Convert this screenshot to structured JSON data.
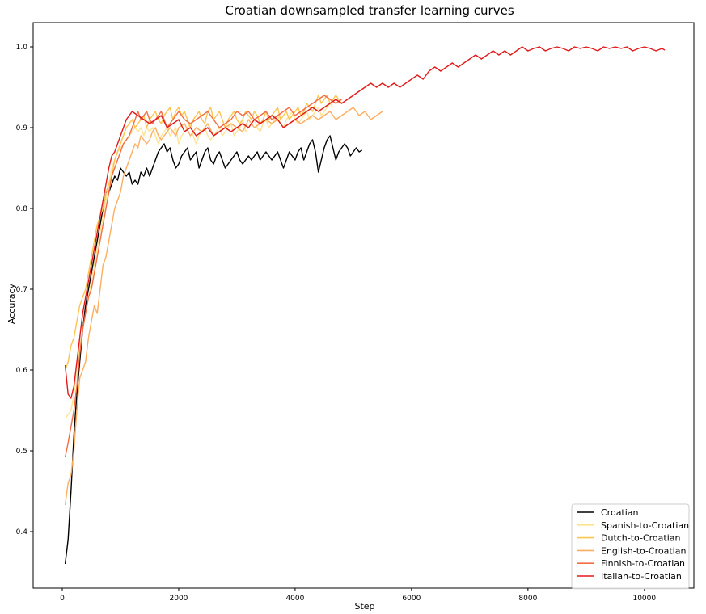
{
  "chart_data": {
    "type": "line",
    "title": "Croatian downsampled transfer learning curves",
    "xlabel": "Step",
    "ylabel": "Accuracy",
    "xlim": [
      -500,
      10850
    ],
    "ylim": [
      0.33,
      1.03
    ],
    "xticks": [
      0,
      2000,
      4000,
      6000,
      8000,
      10000
    ],
    "xtick_labels": [
      "0",
      "2000",
      "4000",
      "6000",
      "8000",
      "10000"
    ],
    "yticks": [
      0.4,
      0.5,
      0.6,
      0.7,
      0.8,
      0.9,
      1.0
    ],
    "ytick_labels": [
      "0.4",
      "0.5",
      "0.6",
      "0.7",
      "0.8",
      "0.9",
      "1.0"
    ],
    "grid": false,
    "legend_position": "lower-right",
    "series": [
      {
        "name": "Croatian",
        "color": "#000000",
        "x": [
          50,
          100,
          150,
          200,
          250,
          300,
          350,
          400,
          450,
          500,
          550,
          600,
          650,
          700,
          750,
          800,
          850,
          900,
          950,
          1000,
          1050,
          1100,
          1150,
          1200,
          1250,
          1300,
          1350,
          1400,
          1450,
          1500,
          1550,
          1600,
          1650,
          1700,
          1750,
          1800,
          1850,
          1900,
          1950,
          2000,
          2050,
          2100,
          2150,
          2200,
          2250,
          2300,
          2350,
          2400,
          2450,
          2500,
          2550,
          2600,
          2650,
          2700,
          2750,
          2800,
          2850,
          2900,
          2950,
          3000,
          3050,
          3100,
          3150,
          3200,
          3250,
          3300,
          3350,
          3400,
          3450,
          3500,
          3550,
          3600,
          3650,
          3700,
          3750,
          3800,
          3850,
          3900,
          3950,
          4000,
          4050,
          4100,
          4150,
          4200,
          4250,
          4300,
          4350,
          4400,
          4450,
          4500,
          4550,
          4600,
          4650,
          4700,
          4750,
          4800,
          4850,
          4900,
          4950,
          5000,
          5050,
          5100,
          5150
        ],
        "y": [
          0.36,
          0.39,
          0.45,
          0.52,
          0.57,
          0.61,
          0.65,
          0.68,
          0.7,
          0.72,
          0.74,
          0.76,
          0.78,
          0.8,
          0.82,
          0.82,
          0.83,
          0.84,
          0.835,
          0.85,
          0.845,
          0.84,
          0.845,
          0.83,
          0.835,
          0.83,
          0.845,
          0.84,
          0.85,
          0.84,
          0.85,
          0.86,
          0.87,
          0.875,
          0.88,
          0.87,
          0.875,
          0.86,
          0.85,
          0.855,
          0.865,
          0.87,
          0.875,
          0.86,
          0.865,
          0.87,
          0.85,
          0.86,
          0.87,
          0.875,
          0.86,
          0.855,
          0.865,
          0.87,
          0.86,
          0.85,
          0.855,
          0.86,
          0.865,
          0.87,
          0.86,
          0.855,
          0.86,
          0.865,
          0.86,
          0.865,
          0.87,
          0.86,
          0.865,
          0.87,
          0.865,
          0.86,
          0.865,
          0.87,
          0.86,
          0.85,
          0.86,
          0.87,
          0.865,
          0.86,
          0.87,
          0.875,
          0.86,
          0.87,
          0.88,
          0.885,
          0.87,
          0.845,
          0.86,
          0.875,
          0.885,
          0.89,
          0.875,
          0.86,
          0.87,
          0.875,
          0.88,
          0.875,
          0.865,
          0.87,
          0.875,
          0.87,
          0.872
        ]
      },
      {
        "name": "Spanish-to-Croatian",
        "color": "#fee391",
        "x": [
          50,
          100,
          150,
          200,
          250,
          300,
          350,
          400,
          450,
          500,
          550,
          600,
          650,
          700,
          750,
          800,
          850,
          900,
          950,
          1000,
          1050,
          1100,
          1150,
          1200,
          1250,
          1300,
          1350,
          1400,
          1450,
          1500,
          1550,
          1600,
          1650,
          1700,
          1750,
          1800,
          1850,
          1900,
          1950,
          2000,
          2050,
          2100,
          2150,
          2200,
          2250,
          2300,
          2350,
          2400,
          2450,
          2500,
          2550,
          2600,
          2650,
          2700,
          2750,
          2800,
          2850,
          2900,
          2950,
          3000,
          3050,
          3100,
          3150,
          3200,
          3250,
          3300,
          3350,
          3400,
          3450,
          3500,
          3550,
          3600,
          3650,
          3700,
          3750,
          3800,
          3850,
          3900,
          3950,
          4000,
          4050,
          4100,
          4150,
          4200,
          4250,
          4300,
          4350,
          4400,
          4450,
          4500,
          4550,
          4600,
          4650
        ],
        "y": [
          0.54,
          0.545,
          0.55,
          0.57,
          0.6,
          0.63,
          0.65,
          0.67,
          0.69,
          0.71,
          0.73,
          0.75,
          0.77,
          0.79,
          0.81,
          0.83,
          0.85,
          0.86,
          0.87,
          0.875,
          0.88,
          0.885,
          0.89,
          0.895,
          0.9,
          0.895,
          0.9,
          0.89,
          0.9,
          0.895,
          0.9,
          0.89,
          0.88,
          0.89,
          0.895,
          0.9,
          0.89,
          0.895,
          0.9,
          0.88,
          0.89,
          0.895,
          0.9,
          0.905,
          0.89,
          0.88,
          0.89,
          0.895,
          0.9,
          0.89,
          0.885,
          0.89,
          0.895,
          0.9,
          0.89,
          0.895,
          0.9,
          0.905,
          0.89,
          0.895,
          0.9,
          0.91,
          0.895,
          0.9,
          0.905,
          0.91,
          0.9,
          0.895,
          0.905,
          0.91,
          0.9,
          0.905,
          0.91,
          0.915,
          0.905,
          0.9,
          0.91,
          0.915,
          0.92,
          0.91,
          0.905,
          0.91,
          0.915,
          0.92,
          0.91,
          0.915,
          0.92,
          0.925,
          0.915,
          0.92,
          0.925,
          0.93,
          0.925
        ]
      },
      {
        "name": "Dutch-to-Croatian",
        "color": "#fec44f",
        "x": [
          50,
          100,
          150,
          200,
          250,
          300,
          350,
          400,
          450,
          500,
          550,
          600,
          650,
          700,
          750,
          800,
          850,
          900,
          950,
          1000,
          1050,
          1100,
          1150,
          1200,
          1250,
          1300,
          1350,
          1400,
          1450,
          1500,
          1550,
          1600,
          1650,
          1700,
          1750,
          1800,
          1850,
          1900,
          1950,
          2000,
          2050,
          2100,
          2150,
          2200,
          2250,
          2300,
          2350,
          2400,
          2450,
          2500,
          2550,
          2600,
          2650,
          2700,
          2750,
          2800,
          2850,
          2900,
          2950,
          3000,
          3050,
          3100,
          3150,
          3200,
          3250,
          3300,
          3350,
          3400,
          3450,
          3500,
          3550,
          3600,
          3650,
          3700,
          3750,
          3800,
          3850,
          3900,
          3950,
          4000,
          4050,
          4100,
          4150,
          4200,
          4250,
          4300,
          4350,
          4400,
          4450,
          4500,
          4550,
          4600,
          4650,
          4700,
          4750,
          4800
        ],
        "y": [
          0.6,
          0.61,
          0.63,
          0.64,
          0.66,
          0.68,
          0.69,
          0.7,
          0.72,
          0.74,
          0.76,
          0.78,
          0.79,
          0.8,
          0.82,
          0.83,
          0.84,
          0.86,
          0.87,
          0.88,
          0.89,
          0.9,
          0.905,
          0.91,
          0.9,
          0.905,
          0.91,
          0.915,
          0.9,
          0.91,
          0.915,
          0.92,
          0.91,
          0.905,
          0.915,
          0.92,
          0.925,
          0.91,
          0.92,
          0.925,
          0.915,
          0.92,
          0.91,
          0.9,
          0.91,
          0.915,
          0.92,
          0.91,
          0.905,
          0.92,
          0.925,
          0.91,
          0.915,
          0.92,
          0.91,
          0.9,
          0.91,
          0.915,
          0.92,
          0.91,
          0.905,
          0.91,
          0.92,
          0.915,
          0.91,
          0.92,
          0.915,
          0.905,
          0.91,
          0.92,
          0.91,
          0.915,
          0.92,
          0.925,
          0.91,
          0.915,
          0.92,
          0.91,
          0.915,
          0.92,
          0.925,
          0.915,
          0.92,
          0.93,
          0.925,
          0.92,
          0.93,
          0.94,
          0.93,
          0.935,
          0.94,
          0.93,
          0.935,
          0.94,
          0.935,
          0.93
        ]
      },
      {
        "name": "English-to-Croatian",
        "color": "#fdae61",
        "x": [
          50,
          100,
          150,
          200,
          250,
          300,
          350,
          400,
          450,
          500,
          550,
          600,
          650,
          700,
          750,
          800,
          850,
          900,
          950,
          1000,
          1050,
          1100,
          1150,
          1200,
          1250,
          1300,
          1350,
          1400,
          1450,
          1500,
          1550,
          1600,
          1650,
          1700,
          1750,
          1800,
          1850,
          1900,
          1950,
          2000,
          2100,
          2200,
          2300,
          2400,
          2500,
          2600,
          2700,
          2800,
          2900,
          3000,
          3100,
          3200,
          3300,
          3400,
          3500,
          3600,
          3700,
          3800,
          3900,
          4000,
          4100,
          4200,
          4300,
          4400,
          4500,
          4600,
          4700,
          4800,
          4900,
          5000,
          5100,
          5200,
          5300,
          5400,
          5500
        ],
        "y": [
          0.433,
          0.46,
          0.47,
          0.5,
          0.55,
          0.59,
          0.6,
          0.61,
          0.64,
          0.66,
          0.68,
          0.67,
          0.7,
          0.73,
          0.74,
          0.76,
          0.78,
          0.8,
          0.81,
          0.82,
          0.84,
          0.85,
          0.86,
          0.87,
          0.88,
          0.875,
          0.89,
          0.885,
          0.88,
          0.885,
          0.895,
          0.9,
          0.89,
          0.885,
          0.89,
          0.895,
          0.9,
          0.895,
          0.89,
          0.9,
          0.905,
          0.89,
          0.9,
          0.895,
          0.905,
          0.89,
          0.895,
          0.9,
          0.905,
          0.9,
          0.895,
          0.91,
          0.9,
          0.905,
          0.91,
          0.905,
          0.91,
          0.9,
          0.905,
          0.91,
          0.905,
          0.91,
          0.915,
          0.91,
          0.915,
          0.92,
          0.91,
          0.915,
          0.92,
          0.925,
          0.915,
          0.92,
          0.91,
          0.915,
          0.92
        ]
      },
      {
        "name": "Finnish-to-Croatian",
        "color": "#f46d43",
        "x": [
          50,
          100,
          150,
          200,
          250,
          300,
          350,
          400,
          450,
          500,
          550,
          600,
          650,
          700,
          750,
          800,
          850,
          900,
          950,
          1000,
          1050,
          1100,
          1150,
          1200,
          1250,
          1300,
          1350,
          1400,
          1450,
          1500,
          1550,
          1600,
          1650,
          1700,
          1750,
          1800,
          1850,
          1900,
          1950,
          2000,
          2100,
          2200,
          2300,
          2400,
          2500,
          2600,
          2700,
          2800,
          2900,
          3000,
          3100,
          3200,
          3300,
          3400,
          3500,
          3600,
          3700,
          3800,
          3900,
          4000,
          4100,
          4200,
          4300,
          4400,
          4500,
          4600,
          4700,
          4800
        ],
        "y": [
          0.492,
          0.51,
          0.53,
          0.55,
          0.58,
          0.62,
          0.65,
          0.67,
          0.69,
          0.7,
          0.72,
          0.74,
          0.76,
          0.78,
          0.8,
          0.82,
          0.84,
          0.85,
          0.86,
          0.87,
          0.88,
          0.885,
          0.89,
          0.9,
          0.91,
          0.92,
          0.91,
          0.915,
          0.92,
          0.91,
          0.905,
          0.91,
          0.915,
          0.92,
          0.91,
          0.9,
          0.905,
          0.91,
          0.915,
          0.92,
          0.91,
          0.905,
          0.91,
          0.915,
          0.92,
          0.91,
          0.9,
          0.905,
          0.91,
          0.92,
          0.915,
          0.92,
          0.91,
          0.915,
          0.92,
          0.91,
          0.915,
          0.92,
          0.925,
          0.915,
          0.92,
          0.925,
          0.93,
          0.935,
          0.94,
          0.935,
          0.93,
          0.935
        ]
      },
      {
        "name": "Italian-to-Croatian",
        "color": "#e31a1c",
        "x": [
          50,
          100,
          150,
          200,
          250,
          300,
          350,
          400,
          450,
          500,
          550,
          600,
          650,
          700,
          750,
          800,
          850,
          900,
          950,
          1000,
          1050,
          1100,
          1150,
          1200,
          1300,
          1400,
          1500,
          1600,
          1700,
          1800,
          1900,
          2000,
          2100,
          2200,
          2300,
          2400,
          2500,
          2600,
          2700,
          2800,
          2900,
          3000,
          3100,
          3200,
          3300,
          3400,
          3500,
          3600,
          3700,
          3800,
          3900,
          4000,
          4100,
          4200,
          4300,
          4400,
          4500,
          4600,
          4700,
          4800,
          4900,
          5000,
          5100,
          5200,
          5300,
          5400,
          5500,
          5600,
          5700,
          5800,
          5900,
          6000,
          6100,
          6200,
          6300,
          6400,
          6500,
          6600,
          6700,
          6800,
          6900,
          7000,
          7100,
          7200,
          7300,
          7400,
          7500,
          7600,
          7700,
          7800,
          7900,
          8000,
          8100,
          8200,
          8300,
          8400,
          8500,
          8600,
          8700,
          8800,
          8900,
          9000,
          9100,
          9200,
          9300,
          9400,
          9500,
          9600,
          9700,
          9800,
          9900,
          10000,
          10100,
          10200,
          10300,
          10350
        ],
        "y": [
          0.606,
          0.57,
          0.565,
          0.58,
          0.61,
          0.64,
          0.67,
          0.69,
          0.71,
          0.73,
          0.75,
          0.77,
          0.79,
          0.81,
          0.83,
          0.85,
          0.865,
          0.87,
          0.88,
          0.89,
          0.9,
          0.91,
          0.915,
          0.92,
          0.915,
          0.91,
          0.905,
          0.91,
          0.915,
          0.9,
          0.905,
          0.91,
          0.895,
          0.9,
          0.89,
          0.895,
          0.9,
          0.89,
          0.895,
          0.9,
          0.895,
          0.9,
          0.905,
          0.9,
          0.91,
          0.905,
          0.91,
          0.915,
          0.91,
          0.9,
          0.905,
          0.91,
          0.915,
          0.92,
          0.925,
          0.92,
          0.925,
          0.93,
          0.935,
          0.93,
          0.935,
          0.94,
          0.945,
          0.95,
          0.955,
          0.95,
          0.955,
          0.95,
          0.955,
          0.95,
          0.955,
          0.96,
          0.965,
          0.96,
          0.97,
          0.975,
          0.97,
          0.975,
          0.98,
          0.975,
          0.98,
          0.985,
          0.99,
          0.985,
          0.99,
          0.995,
          0.99,
          0.995,
          0.99,
          0.995,
          1.0,
          0.995,
          0.998,
          1.0,
          0.995,
          0.998,
          1.0,
          0.998,
          0.995,
          1.0,
          0.998,
          1.0,
          0.998,
          0.995,
          1.0,
          0.998,
          1.0,
          0.998,
          1.0,
          0.995,
          0.998,
          1.0,
          0.998,
          0.995,
          0.998,
          0.996
        ]
      }
    ]
  }
}
